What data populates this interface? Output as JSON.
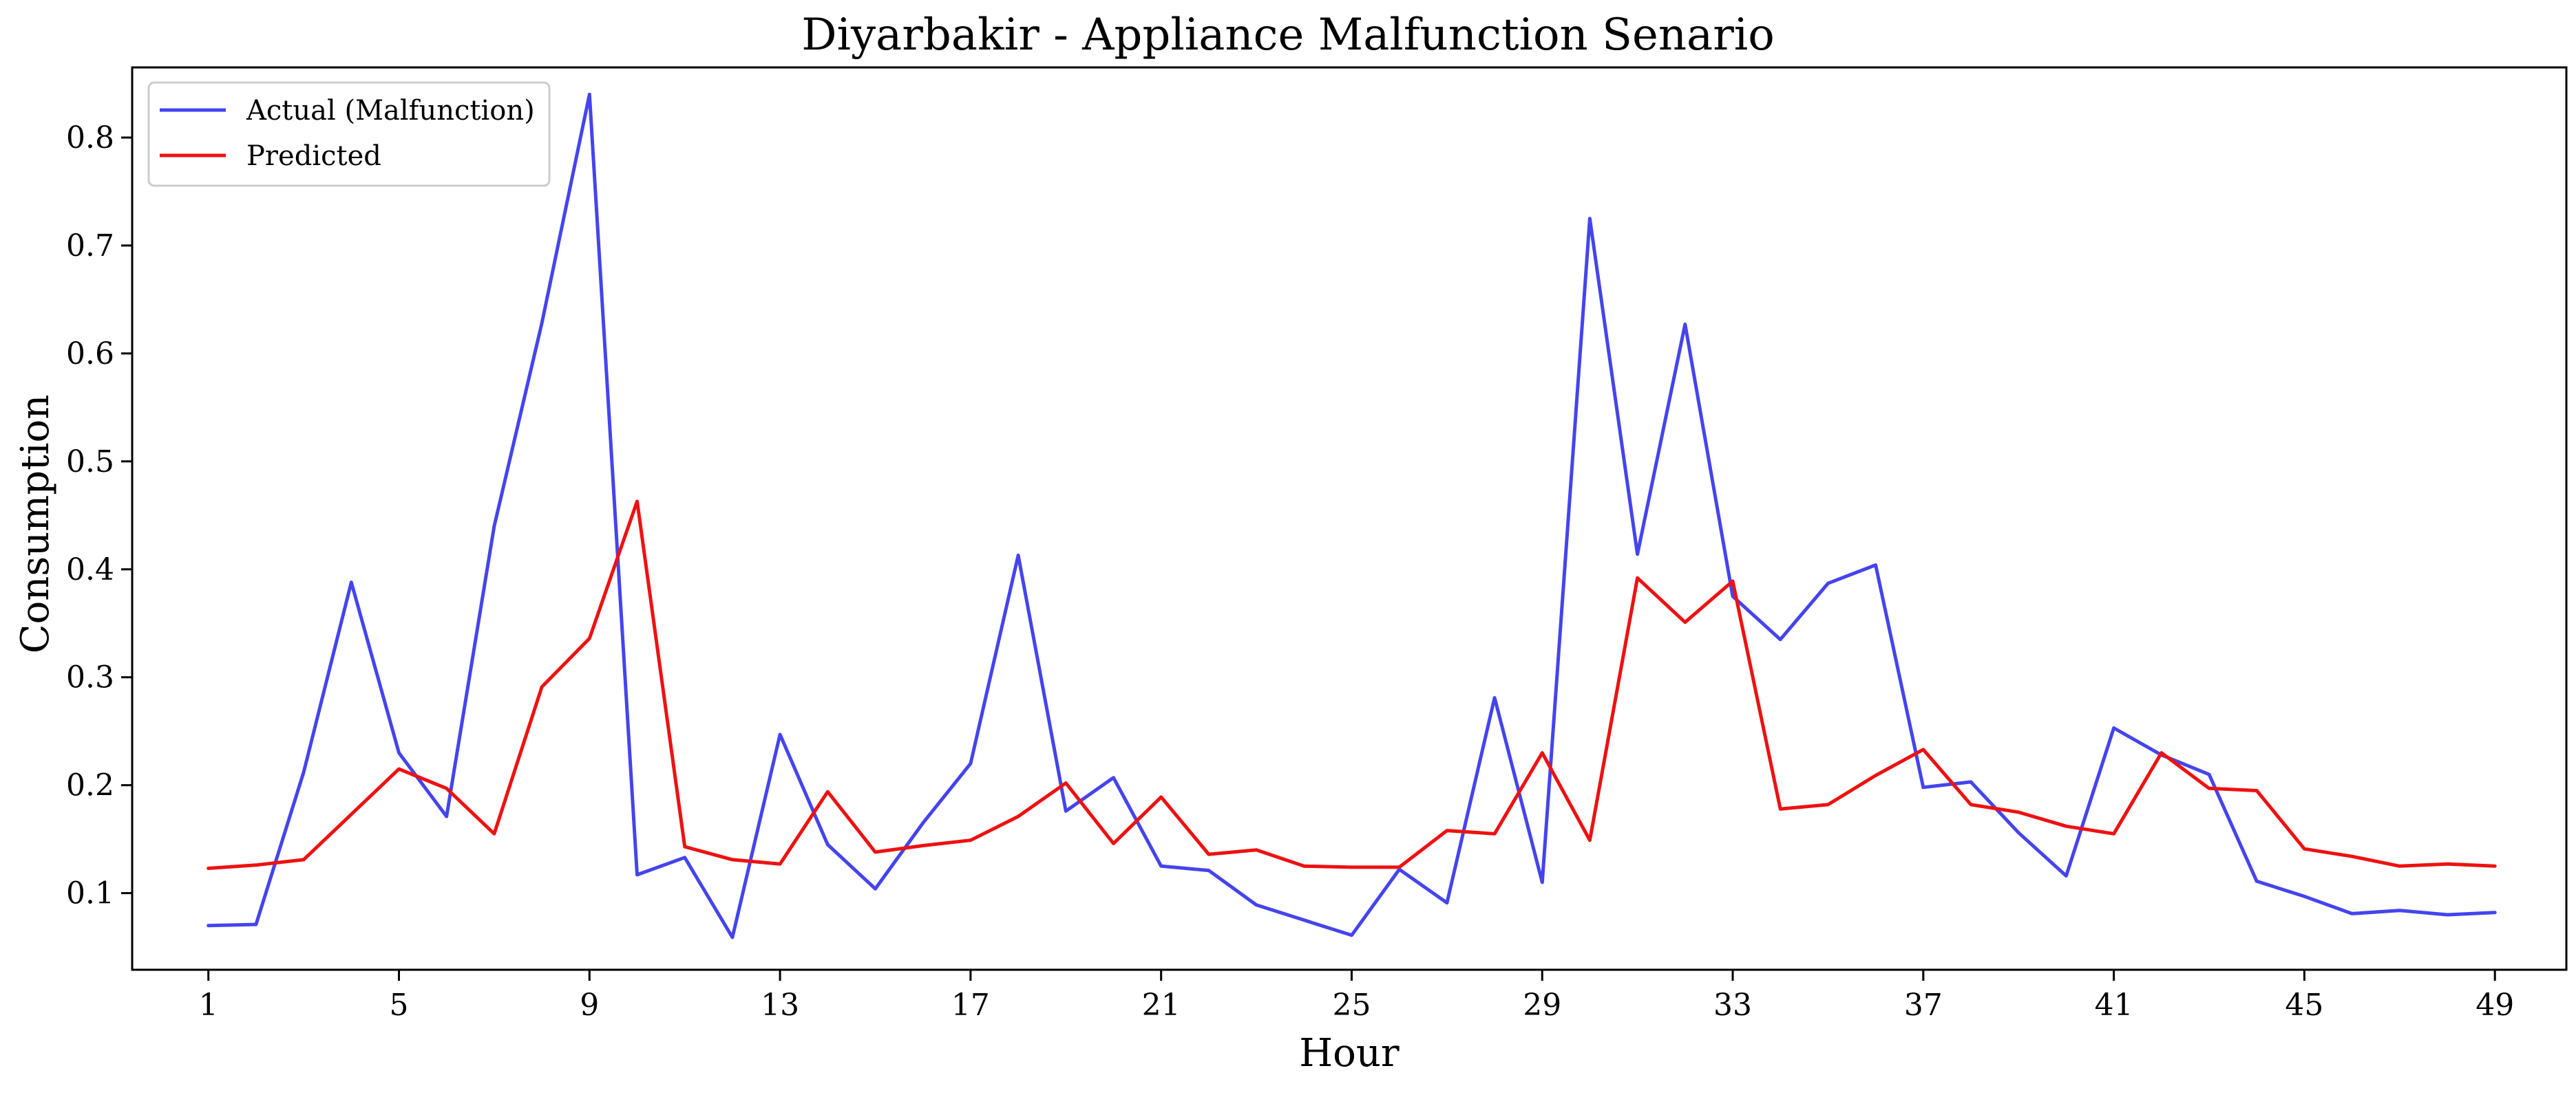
{
  "chart_data": {
    "type": "line",
    "title": "Diyarbakir - Appliance Malfunction Senario",
    "xlabel": "Hour",
    "ylabel": "Consumption",
    "xlim": [
      -0.6,
      50.5
    ],
    "ylim": [
      0.029,
      0.865
    ],
    "x_ticks": [
      1,
      5,
      9,
      13,
      17,
      21,
      25,
      29,
      33,
      37,
      41,
      45,
      49
    ],
    "y_ticks": [
      0.1,
      0.2,
      0.3,
      0.4,
      0.5,
      0.6,
      0.7,
      0.8
    ],
    "grid": false,
    "legend_position": "top-left",
    "x": [
      1,
      2,
      3,
      4,
      5,
      6,
      7,
      8,
      9,
      10,
      11,
      12,
      13,
      14,
      15,
      16,
      17,
      18,
      19,
      20,
      21,
      22,
      23,
      24,
      25,
      26,
      27,
      28,
      29,
      30,
      31,
      32,
      33,
      34,
      35,
      36,
      37,
      38,
      39,
      40,
      41,
      42,
      43,
      44,
      45,
      46,
      47,
      48,
      49
    ],
    "series": [
      {
        "name": "Actual (Malfunction)",
        "color": "#4444ee",
        "values": [
          0.07,
          0.071,
          0.212,
          0.388,
          0.23,
          0.171,
          0.44,
          0.628,
          0.84,
          0.117,
          0.133,
          0.059,
          0.247,
          0.145,
          0.104,
          0.165,
          0.22,
          0.413,
          0.176,
          0.207,
          0.125,
          0.121,
          0.089,
          0.075,
          0.061,
          0.122,
          0.091,
          0.281,
          0.11,
          0.725,
          0.414,
          0.627,
          0.375,
          0.335,
          0.387,
          0.404,
          0.198,
          0.203,
          0.156,
          0.116,
          0.253,
          0.228,
          0.21,
          0.111,
          0.097,
          0.081,
          0.084,
          0.08,
          0.082
        ]
      },
      {
        "name": "Predicted",
        "color": "#ee1111",
        "values": [
          0.123,
          0.126,
          0.131,
          0.173,
          0.215,
          0.197,
          0.155,
          0.291,
          0.336,
          0.463,
          0.143,
          0.131,
          0.127,
          0.194,
          0.138,
          0.144,
          0.149,
          0.171,
          0.202,
          0.146,
          0.189,
          0.136,
          0.14,
          0.125,
          0.124,
          0.124,
          0.158,
          0.155,
          0.23,
          0.149,
          0.392,
          0.351,
          0.389,
          0.178,
          0.182,
          0.209,
          0.233,
          0.182,
          0.175,
          0.162,
          0.155,
          0.23,
          0.197,
          0.195,
          0.141,
          0.134,
          0.125,
          0.127,
          0.125
        ]
      }
    ]
  }
}
